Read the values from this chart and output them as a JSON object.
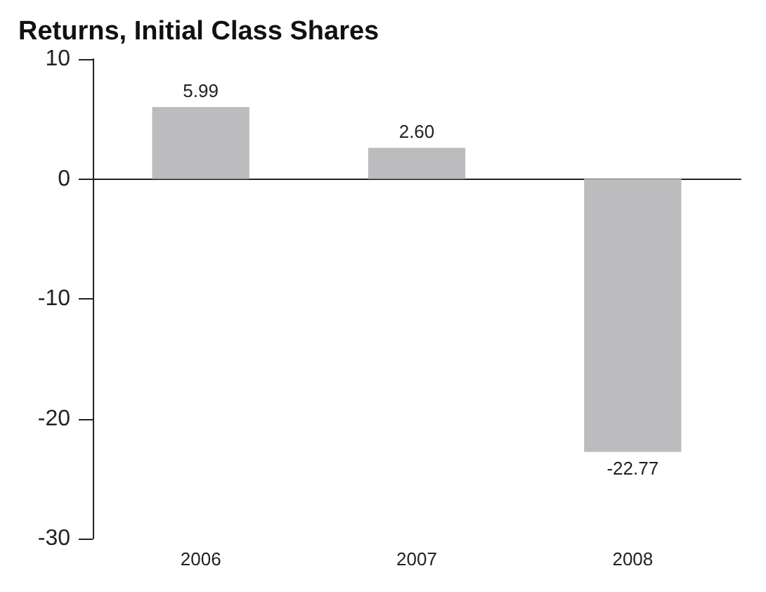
{
  "chart_data": {
    "type": "bar",
    "title": "Returns, Initial Class Shares",
    "categories": [
      "2006",
      "2007",
      "2008"
    ],
    "values": [
      5.99,
      2.6,
      -22.77
    ],
    "value_labels": [
      "5.99",
      "2.60",
      "-22.77"
    ],
    "color": "#bcbcbe",
    "ylim": [
      -30,
      10
    ],
    "yticks": [
      -30,
      -20,
      -10,
      0,
      10
    ]
  }
}
